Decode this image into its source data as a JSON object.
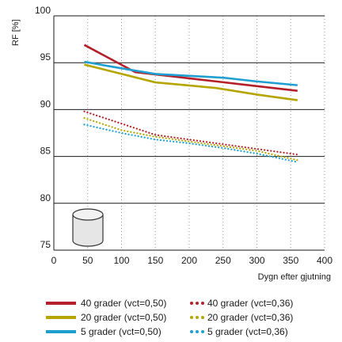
{
  "chart_data": {
    "type": "line",
    "ylabel": "RF [%]",
    "xlabel": "Dygn efter gjutning",
    "xlim": [
      0,
      400
    ],
    "ylim": [
      75,
      100
    ],
    "x_ticks": [
      0,
      50,
      100,
      150,
      200,
      250,
      300,
      350,
      400
    ],
    "y_ticks": [
      75,
      80,
      85,
      90,
      95,
      100
    ],
    "grid": "horizontal solid, vertical dotted",
    "series": [
      {
        "name": "40 grader (vct=0,50)",
        "color": "#b3202a",
        "style": "solid",
        "x": [
          45,
          120,
          180,
          240,
          300,
          360
        ],
        "y": [
          96.9,
          94.0,
          93.5,
          93.0,
          92.5,
          92.0
        ]
      },
      {
        "name": "20 grader (vct=0,50)",
        "color": "#b5a500",
        "style": "solid",
        "x": [
          45,
          150,
          240,
          300,
          360
        ],
        "y": [
          94.8,
          92.9,
          92.3,
          91.6,
          91.0
        ]
      },
      {
        "name": "5 grader (vct=0,50)",
        "color": "#1e9fd0",
        "style": "solid",
        "x": [
          45,
          100,
          150,
          200,
          250,
          300,
          360
        ],
        "y": [
          95.1,
          94.4,
          93.8,
          93.6,
          93.4,
          93.0,
          92.6
        ]
      },
      {
        "name": "40 grader (vct=0,36)",
        "color": "#b3202a",
        "style": "dotted",
        "x": [
          45,
          100,
          150,
          200,
          250,
          300,
          360
        ],
        "y": [
          89.8,
          88.5,
          87.3,
          86.8,
          86.3,
          85.8,
          85.2
        ]
      },
      {
        "name": "20 grader (vct=0,36)",
        "color": "#b5a500",
        "style": "dotted",
        "x": [
          45,
          100,
          150,
          200,
          250,
          300,
          360
        ],
        "y": [
          89.1,
          87.8,
          87.1,
          86.6,
          86.1,
          85.6,
          84.6
        ]
      },
      {
        "name": "5 grader (vct=0,36)",
        "color": "#1e9fd0",
        "style": "dotted",
        "x": [
          45,
          100,
          150,
          200,
          250,
          300,
          360
        ],
        "y": [
          88.4,
          87.5,
          86.8,
          86.4,
          85.9,
          85.3,
          84.4
        ]
      }
    ],
    "legend_placement": "bottom",
    "icon": "cylinder-icon"
  }
}
